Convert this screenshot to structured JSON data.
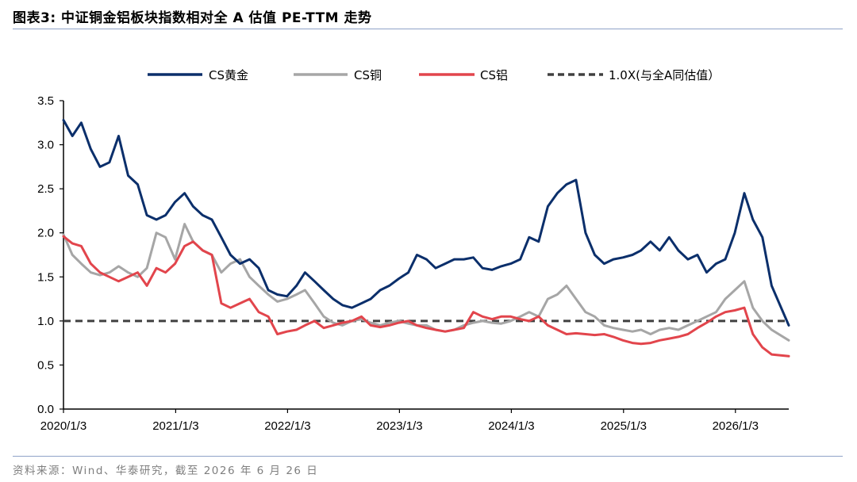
{
  "header": {
    "title": "图表3:   中证铜金铝板块指数相对全 A 估值 PE-TTM 走势"
  },
  "footer": {
    "source": "资料来源：Wind、华泰研究，截至 2026 年 6 月 26 日"
  },
  "colors": {
    "gold": "#0b2f6b",
    "copper": "#a6a6a6",
    "aluminum": "#e2454c",
    "reference": "#404040"
  },
  "chart_data": {
    "type": "line",
    "title": "",
    "xlabel": "",
    "ylabel": "",
    "xlim": [
      "2020-01-03",
      "2026-06-26"
    ],
    "ylim": [
      0.0,
      3.5
    ],
    "yticks": [
      0.0,
      0.5,
      1.0,
      1.5,
      2.0,
      2.5,
      3.0,
      3.5
    ],
    "ytick_labels": [
      "0.0",
      "0.5",
      "1.0",
      "1.5",
      "2.0",
      "2.5",
      "3.0",
      "3.5"
    ],
    "xtick_labels": [
      "2020/1/3",
      "2021/1/3",
      "2022/1/3",
      "2023/1/3",
      "2024/1/3",
      "2025/1/3",
      "2026/1/3"
    ],
    "xtick_dates": [
      "2020-01-03",
      "2021-01-03",
      "2022-01-03",
      "2023-01-03",
      "2024-01-03",
      "2025-01-03",
      "2026-01-03"
    ],
    "grid": false,
    "legend_position": "top",
    "series": [
      {
        "name": "CS黄金",
        "color": "#0b2f6b",
        "style": "solid",
        "x": [
          "2020-01-03",
          "2020-02-01",
          "2020-03-01",
          "2020-04-01",
          "2020-05-01",
          "2020-06-01",
          "2020-07-01",
          "2020-08-01",
          "2020-09-01",
          "2020-10-01",
          "2020-11-01",
          "2020-12-01",
          "2021-01-01",
          "2021-02-01",
          "2021-03-01",
          "2021-04-01",
          "2021-05-01",
          "2021-06-01",
          "2021-07-01",
          "2021-08-01",
          "2021-09-01",
          "2021-10-01",
          "2021-11-01",
          "2021-12-01",
          "2022-01-01",
          "2022-02-01",
          "2022-03-01",
          "2022-04-01",
          "2022-05-01",
          "2022-06-01",
          "2022-07-01",
          "2022-08-01",
          "2022-09-01",
          "2022-10-01",
          "2022-11-01",
          "2022-12-01",
          "2023-01-01",
          "2023-02-01",
          "2023-03-01",
          "2023-04-01",
          "2023-05-01",
          "2023-06-01",
          "2023-07-01",
          "2023-08-01",
          "2023-09-01",
          "2023-10-01",
          "2023-11-01",
          "2023-12-01",
          "2024-01-01",
          "2024-02-01",
          "2024-03-01",
          "2024-04-01",
          "2024-05-01",
          "2024-06-01",
          "2024-07-01",
          "2024-08-01",
          "2024-09-01",
          "2024-10-01",
          "2024-11-01",
          "2024-12-01",
          "2025-01-01",
          "2025-02-01",
          "2025-03-01",
          "2025-04-01",
          "2025-05-01",
          "2025-06-01",
          "2025-07-01",
          "2025-08-01",
          "2025-09-01",
          "2025-10-01",
          "2025-11-01",
          "2025-12-01",
          "2026-01-01",
          "2026-02-01",
          "2026-03-01",
          "2026-04-01",
          "2026-05-01",
          "2026-06-26"
        ],
        "values": [
          3.28,
          3.1,
          3.25,
          2.95,
          2.75,
          2.8,
          3.1,
          2.65,
          2.55,
          2.2,
          2.15,
          2.2,
          2.35,
          2.45,
          2.3,
          2.2,
          2.15,
          1.95,
          1.75,
          1.65,
          1.7,
          1.6,
          1.35,
          1.3,
          1.28,
          1.4,
          1.55,
          1.45,
          1.35,
          1.25,
          1.18,
          1.15,
          1.2,
          1.25,
          1.35,
          1.4,
          1.48,
          1.55,
          1.75,
          1.7,
          1.6,
          1.65,
          1.7,
          1.7,
          1.72,
          1.6,
          1.58,
          1.62,
          1.65,
          1.7,
          1.95,
          1.9,
          2.3,
          2.45,
          2.55,
          2.6,
          2.0,
          1.75,
          1.65,
          1.7,
          1.72,
          1.75,
          1.8,
          1.9,
          1.8,
          1.95,
          1.8,
          1.7,
          1.75,
          1.55,
          1.65,
          1.7,
          2.0,
          2.45,
          2.15,
          1.95,
          1.4,
          0.95
        ]
      },
      {
        "name": "CS铜",
        "color": "#a6a6a6",
        "style": "solid",
        "x": [
          "2020-01-03",
          "2020-02-01",
          "2020-03-01",
          "2020-04-01",
          "2020-05-01",
          "2020-06-01",
          "2020-07-01",
          "2020-08-01",
          "2020-09-01",
          "2020-10-01",
          "2020-11-01",
          "2020-12-01",
          "2021-01-01",
          "2021-02-01",
          "2021-03-01",
          "2021-04-01",
          "2021-05-01",
          "2021-06-01",
          "2021-07-01",
          "2021-08-01",
          "2021-09-01",
          "2021-10-01",
          "2021-11-01",
          "2021-12-01",
          "2022-01-01",
          "2022-02-01",
          "2022-03-01",
          "2022-04-01",
          "2022-05-01",
          "2022-06-01",
          "2022-07-01",
          "2022-08-01",
          "2022-09-01",
          "2022-10-01",
          "2022-11-01",
          "2022-12-01",
          "2023-01-01",
          "2023-02-01",
          "2023-03-01",
          "2023-04-01",
          "2023-05-01",
          "2023-06-01",
          "2023-07-01",
          "2023-08-01",
          "2023-09-01",
          "2023-10-01",
          "2023-11-01",
          "2023-12-01",
          "2024-01-01",
          "2024-02-01",
          "2024-03-01",
          "2024-04-01",
          "2024-05-01",
          "2024-06-01",
          "2024-07-01",
          "2024-08-01",
          "2024-09-01",
          "2024-10-01",
          "2024-11-01",
          "2024-12-01",
          "2025-01-01",
          "2025-02-01",
          "2025-03-01",
          "2025-04-01",
          "2025-05-01",
          "2025-06-01",
          "2025-07-01",
          "2025-08-01",
          "2025-09-01",
          "2025-10-01",
          "2025-11-01",
          "2025-12-01",
          "2026-01-01",
          "2026-02-01",
          "2026-03-01",
          "2026-04-01",
          "2026-05-01",
          "2026-06-26"
        ],
        "values": [
          1.98,
          1.75,
          1.65,
          1.55,
          1.52,
          1.55,
          1.62,
          1.55,
          1.5,
          1.6,
          2.0,
          1.95,
          1.7,
          2.1,
          1.9,
          1.8,
          1.75,
          1.55,
          1.65,
          1.7,
          1.5,
          1.4,
          1.3,
          1.22,
          1.25,
          1.3,
          1.35,
          1.2,
          1.05,
          0.98,
          0.95,
          1.0,
          1.02,
          0.98,
          0.95,
          0.98,
          1.0,
          0.97,
          0.95,
          0.95,
          0.9,
          0.88,
          0.9,
          0.95,
          0.98,
          1.0,
          0.98,
          0.97,
          1.0,
          1.05,
          1.1,
          1.05,
          1.25,
          1.3,
          1.4,
          1.25,
          1.1,
          1.05,
          0.95,
          0.92,
          0.9,
          0.88,
          0.9,
          0.85,
          0.9,
          0.92,
          0.9,
          0.95,
          1.0,
          1.05,
          1.1,
          1.25,
          1.35,
          1.45,
          1.15,
          1.0,
          0.9,
          0.78
        ]
      },
      {
        "name": "CS铝",
        "color": "#e2454c",
        "style": "solid",
        "x": [
          "2020-01-03",
          "2020-02-01",
          "2020-03-01",
          "2020-04-01",
          "2020-05-01",
          "2020-06-01",
          "2020-07-01",
          "2020-08-01",
          "2020-09-01",
          "2020-10-01",
          "2020-11-01",
          "2020-12-01",
          "2021-01-01",
          "2021-02-01",
          "2021-03-01",
          "2021-04-01",
          "2021-05-01",
          "2021-06-01",
          "2021-07-01",
          "2021-08-01",
          "2021-09-01",
          "2021-10-01",
          "2021-11-01",
          "2021-12-01",
          "2022-01-01",
          "2022-02-01",
          "2022-03-01",
          "2022-04-01",
          "2022-05-01",
          "2022-06-01",
          "2022-07-01",
          "2022-08-01",
          "2022-09-01",
          "2022-10-01",
          "2022-11-01",
          "2022-12-01",
          "2023-01-01",
          "2023-02-01",
          "2023-03-01",
          "2023-04-01",
          "2023-05-01",
          "2023-06-01",
          "2023-07-01",
          "2023-08-01",
          "2023-09-01",
          "2023-10-01",
          "2023-11-01",
          "2023-12-01",
          "2024-01-01",
          "2024-02-01",
          "2024-03-01",
          "2024-04-01",
          "2024-05-01",
          "2024-06-01",
          "2024-07-01",
          "2024-08-01",
          "2024-09-01",
          "2024-10-01",
          "2024-11-01",
          "2024-12-01",
          "2025-01-01",
          "2025-02-01",
          "2025-03-01",
          "2025-04-01",
          "2025-05-01",
          "2025-06-01",
          "2025-07-01",
          "2025-08-01",
          "2025-09-01",
          "2025-10-01",
          "2025-11-01",
          "2025-12-01",
          "2026-01-01",
          "2026-02-01",
          "2026-03-01",
          "2026-04-01",
          "2026-05-01",
          "2026-06-26"
        ],
        "values": [
          1.96,
          1.88,
          1.85,
          1.65,
          1.55,
          1.5,
          1.45,
          1.5,
          1.55,
          1.4,
          1.6,
          1.55,
          1.65,
          1.85,
          1.9,
          1.8,
          1.75,
          1.2,
          1.15,
          1.2,
          1.25,
          1.1,
          1.05,
          0.85,
          0.88,
          0.9,
          0.95,
          1.0,
          0.92,
          0.95,
          0.98,
          1.0,
          1.05,
          0.95,
          0.93,
          0.95,
          0.98,
          1.0,
          0.95,
          0.92,
          0.9,
          0.88,
          0.9,
          0.92,
          1.1,
          1.05,
          1.02,
          1.05,
          1.05,
          1.02,
          1.0,
          1.05,
          0.95,
          0.9,
          0.85,
          0.86,
          0.85,
          0.84,
          0.85,
          0.82,
          0.78,
          0.75,
          0.74,
          0.75,
          0.78,
          0.8,
          0.82,
          0.85,
          0.92,
          0.98,
          1.05,
          1.1,
          1.12,
          1.15,
          0.85,
          0.7,
          0.62,
          0.6
        ]
      },
      {
        "name": "1.0X(与全A同估值）",
        "color": "#404040",
        "style": "dashed",
        "x": [
          "2020-01-03",
          "2026-06-26"
        ],
        "values": [
          1.0,
          1.0
        ]
      }
    ]
  }
}
